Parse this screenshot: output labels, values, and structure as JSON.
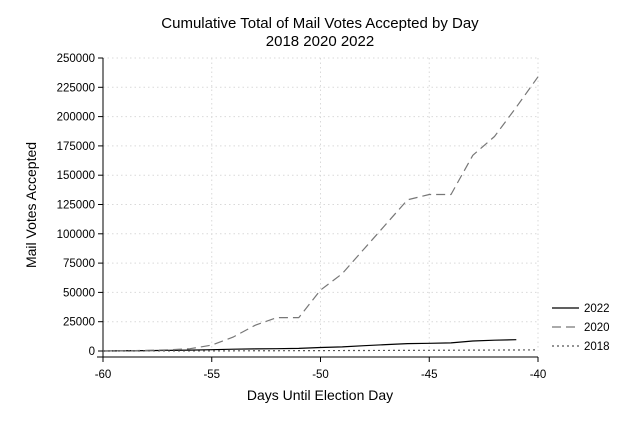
{
  "chart_data": {
    "type": "line",
    "title": "Cumulative Total of Mail Votes Accepted by Day",
    "subtitle": "2018 2020 2022",
    "xlabel": "Days Until Election Day",
    "ylabel": "Mail Votes Accepted",
    "xlim": [
      -60,
      -40
    ],
    "ylim": [
      0,
      250000
    ],
    "xticks": [
      -60,
      -55,
      -50,
      -45,
      -40
    ],
    "yticks": [
      0,
      25000,
      50000,
      75000,
      100000,
      125000,
      150000,
      175000,
      200000,
      225000,
      250000
    ],
    "grid": true,
    "legend_position": "right",
    "series": [
      {
        "name": "2022",
        "color": "#000000",
        "style": "solid",
        "x": [
          -60,
          -59,
          -58,
          -57,
          -56,
          -55,
          -54,
          -53,
          -52,
          -51,
          -50,
          -49,
          -48,
          -47,
          -46,
          -45,
          -44,
          -43,
          -42,
          -41
        ],
        "values": [
          0,
          150,
          300,
          500,
          800,
          1100,
          1500,
          1800,
          2000,
          2200,
          3000,
          3500,
          4500,
          5500,
          6300,
          6600,
          6900,
          8500,
          9200,
          9600
        ]
      },
      {
        "name": "2020",
        "color": "#777777",
        "style": "dashed",
        "x": [
          -60,
          -59,
          -58,
          -57,
          -56,
          -55,
          -54,
          -53,
          -52,
          -51,
          -50,
          -49,
          -48,
          -47,
          -46,
          -45,
          -44,
          -43,
          -42,
          -41,
          -40
        ],
        "values": [
          0,
          200,
          500,
          1000,
          2000,
          5000,
          12000,
          22000,
          28500,
          28500,
          52000,
          66000,
          87000,
          108000,
          129000,
          133500,
          133500,
          167000,
          183000,
          208000,
          234000
        ]
      },
      {
        "name": "2018",
        "color": "#555555",
        "style": "dotted",
        "x": [
          -60,
          -55,
          -50,
          -45,
          -40
        ],
        "values": [
          0,
          100,
          300,
          600,
          900
        ]
      }
    ]
  }
}
